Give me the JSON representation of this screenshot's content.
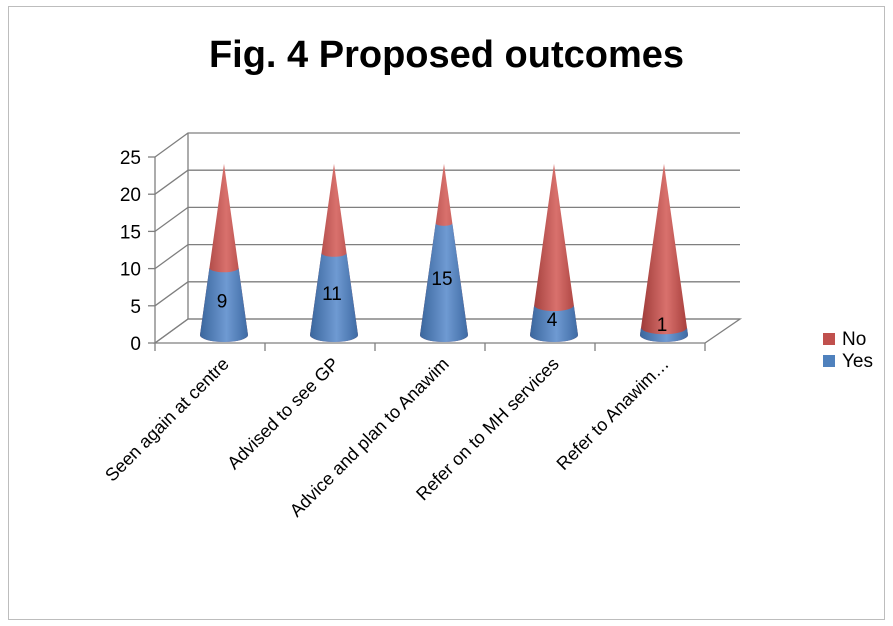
{
  "chart_data": {
    "type": "bar",
    "style": "3d-cone-stacked",
    "title": "Fig. 4 Proposed outcomes",
    "categories": [
      "Seen again at centre",
      "Advised to see GP",
      "Advice and plan to Anawim",
      "Refer on to MH services",
      "Refer to Anawim…"
    ],
    "series": [
      {
        "name": "Yes",
        "values": [
          9,
          11,
          15,
          4,
          1
        ],
        "color": "#4f81bd"
      },
      {
        "name": "No",
        "values": [
          14,
          12,
          8,
          19,
          22
        ],
        "color": "#c0504d"
      }
    ],
    "data_labels": [
      "9",
      "11",
      "15",
      "4",
      "1"
    ],
    "yticks": [
      "0",
      "5",
      "10",
      "15",
      "20",
      "25"
    ],
    "ylim": [
      0,
      25
    ],
    "grid": true,
    "legend": {
      "position": "right",
      "entries": [
        "No",
        "Yes"
      ]
    }
  }
}
